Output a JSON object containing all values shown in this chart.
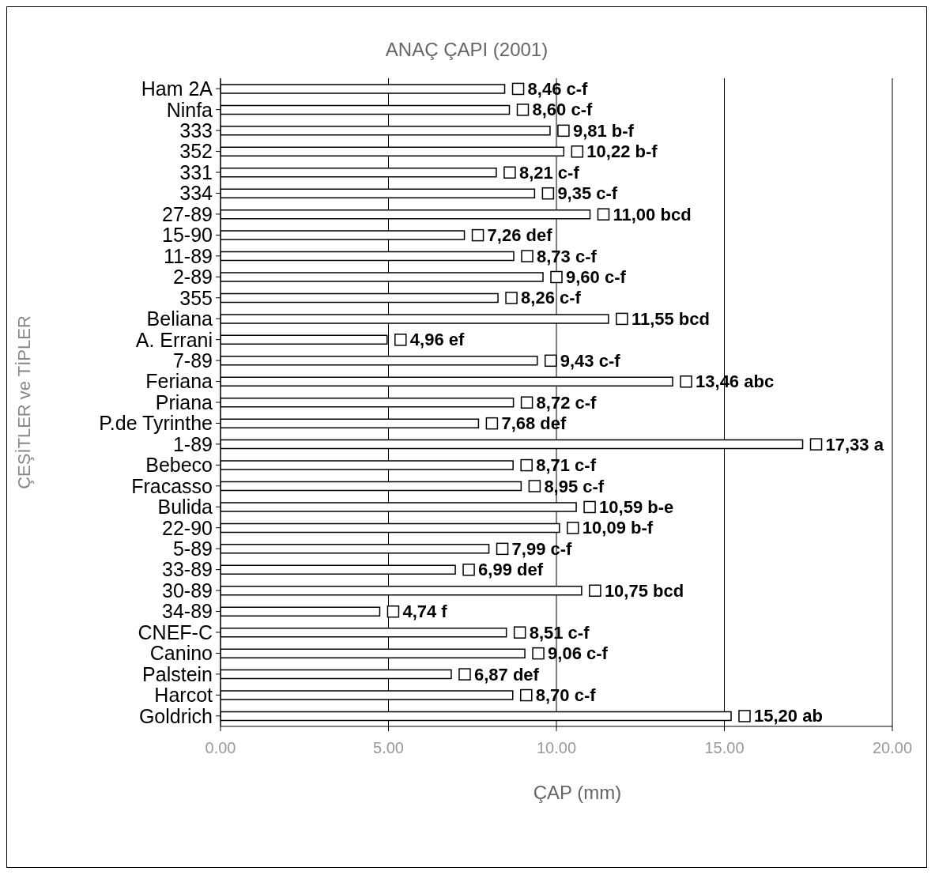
{
  "chart_data": {
    "type": "bar",
    "orientation": "horizontal",
    "title": "ANAÇ ÇAPI (2001)",
    "xlabel": "ÇAP (mm)",
    "ylabel": "ÇEŞİTLER ve TİPLER",
    "categories": [
      "Ham 2A",
      "Ninfa",
      "333",
      "352",
      "331",
      "334",
      "27-89",
      "15-90",
      "11-89",
      "2-89",
      "355",
      "Beliana",
      "A. Errani",
      "7-89",
      "Feriana",
      "Priana",
      "P.de Tyrinthe",
      "1-89",
      "Bebeco",
      "Fracasso",
      "Bulida",
      "22-90",
      "5-89",
      "33-89",
      "30-89",
      "34-89",
      "CNEF-C",
      "Canino",
      "Palstein",
      "Harcot",
      "Goldrich"
    ],
    "values": [
      8.46,
      8.6,
      9.81,
      10.22,
      8.21,
      9.35,
      11.0,
      7.26,
      8.73,
      9.6,
      8.26,
      11.55,
      4.96,
      9.43,
      13.46,
      8.72,
      7.68,
      17.33,
      8.71,
      8.95,
      10.59,
      10.09,
      7.99,
      6.99,
      10.75,
      4.74,
      8.51,
      9.06,
      6.87,
      8.7,
      15.2
    ],
    "value_labels": [
      "8,46 c-f",
      "8,60 c-f",
      "9,81 b-f",
      "10,22 b-f",
      "8,21 c-f",
      "9,35 c-f",
      "11,00 bcd",
      "7,26 def",
      "8,73 c-f",
      "9,60 c-f",
      "8,26 c-f",
      "11,55 bcd",
      "4,96 ef",
      "9,43 c-f",
      "13,46 abc",
      "8,72 c-f",
      "7,68 def",
      "17,33 a",
      "8,71 c-f",
      "8,95 c-f",
      "10,59 b-e",
      "10,09 b-f",
      "7,99 c-f",
      "6,99 def",
      "10,75 bcd",
      "4,74 f",
      "8,51 c-f",
      "9,06 c-f",
      "6,87 def",
      "8,70 c-f",
      "15,20 ab"
    ],
    "color": "#ffffff",
    "xlim": [
      0,
      20
    ],
    "xticks": [
      {
        "value": 0,
        "label": "0.00"
      },
      {
        "value": 5,
        "label": "5.00"
      },
      {
        "value": 10,
        "label": "10.00"
      },
      {
        "value": 15,
        "label": "15.00"
      },
      {
        "value": 20,
        "label": "20.00"
      }
    ],
    "grid": "x"
  }
}
